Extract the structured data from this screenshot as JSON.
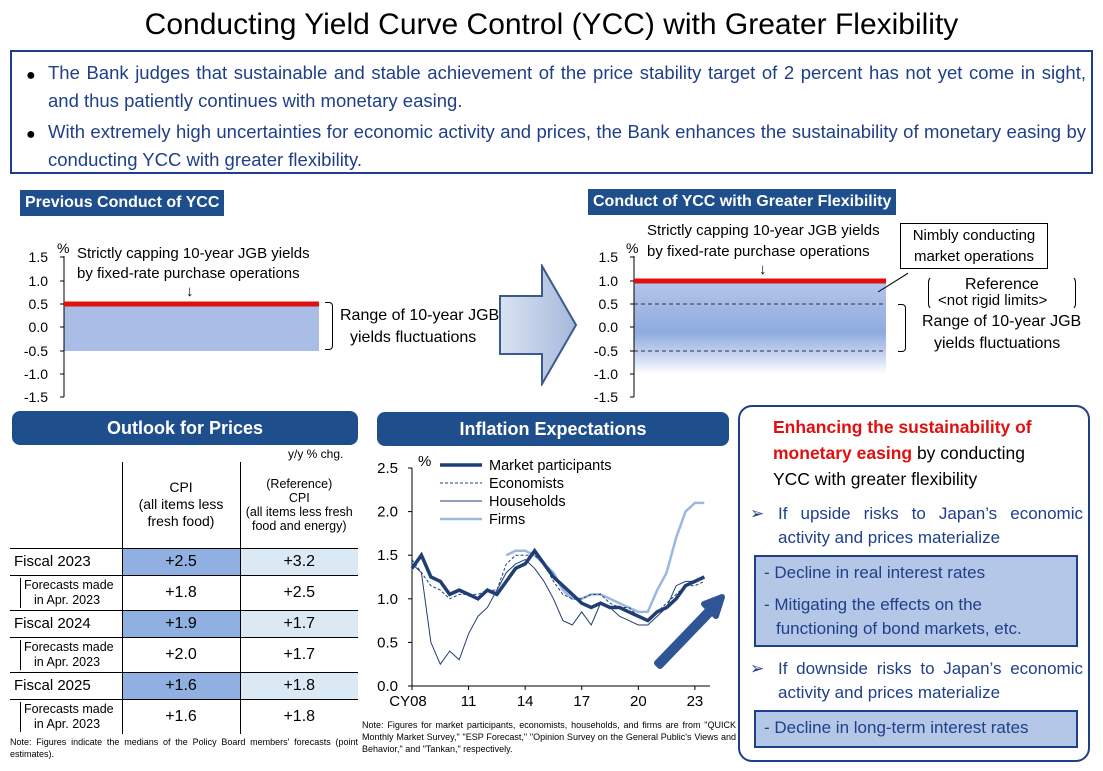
{
  "title": "Conducting Yield Curve Control (YCC) with Greater Flexibility",
  "summary": [
    "The Bank judges that sustainable and stable achievement of the price stability target of 2 percent has not yet come in sight, and thus patiently continues with monetary easing.",
    "With extremely high uncertainties for economic activity and prices, the Bank enhances the sustainability of monetary easing by conducting YCC with greater flexibility."
  ],
  "previous": {
    "header": "Previous Conduct of YCC",
    "unit": "%",
    "ticks": [
      "1.5",
      "1.0",
      "0.5",
      "0.0",
      "-0.5",
      "-1.0",
      "-1.5"
    ],
    "cap_label_1": "Strictly capping 10-year JGB yields",
    "cap_label_2": "by fixed-rate purchase operations",
    "arrow": "↓",
    "range_1": "Range of 10-year JGB",
    "range_2": "yields fluctuations",
    "cap_value": 0.5,
    "range": [
      -0.5,
      0.5
    ]
  },
  "flexible": {
    "header": "Conduct of YCC with Greater Flexibility",
    "unit": "%",
    "ticks": [
      "1.5",
      "1.0",
      "0.5",
      "0.0",
      "-0.5",
      "-1.0",
      "-1.5"
    ],
    "cap_label_1": "Strictly capping 10-year JGB yields",
    "cap_label_2": "by fixed-rate purchase operations",
    "arrow": "↓",
    "nimbly_1": "Nimbly conducting",
    "nimbly_2": "market operations",
    "ref_1": "Reference",
    "ref_2": "<not rigid limits>",
    "range_1": "Range of 10-year JGB",
    "range_2": "yields fluctuations",
    "cap_value": 1.0,
    "reference": [
      -0.5,
      0.5
    ]
  },
  "prices": {
    "header": "Outlook for Prices",
    "unit_note": "y/y % chg.",
    "col1": [
      "CPI",
      "(all items less",
      "fresh food)"
    ],
    "col2": [
      "(Reference)",
      "CPI",
      "(all items less fresh",
      "food and energy)"
    ],
    "rows": [
      {
        "label": "Fiscal 2023",
        "cpi": "+2.5",
        "core": "+3.2"
      },
      {
        "label": "Forecasts made in Apr. 2023",
        "l1": "Forecasts made",
        "l2": "in Apr. 2023",
        "cpi": "+1.8",
        "core": "+2.5"
      },
      {
        "label": "Fiscal 2024",
        "cpi": "+1.9",
        "core": "+1.7"
      },
      {
        "label": "Forecasts made in Apr. 2023",
        "l1": "Forecasts made",
        "l2": "in Apr. 2023",
        "cpi": "+2.0",
        "core": "+1.7"
      },
      {
        "label": "Fiscal 2025",
        "cpi": "+1.6",
        "core": "+1.8"
      },
      {
        "label": "Forecasts made in Apr. 2023",
        "l1": "Forecasts made",
        "l2": "in Apr. 2023",
        "cpi": "+1.6",
        "core": "+1.8"
      }
    ],
    "note": "Note: Figures indicate the medians of the Policy Board members' forecasts (point estimates)."
  },
  "inflation": {
    "header": "Inflation Expectations",
    "note": "Note: Figures for market participants, economists, households, and firms are from \"QUICK Monthly Market Survey,\" \"ESP Forecast,\" \"Opinion Survey on the General Public's Views and Behavior,\" and \"Tankan,\" respectively."
  },
  "chart_data": {
    "type": "line",
    "ylabel": "%",
    "ylim": [
      0.0,
      2.5
    ],
    "yticks": [
      "0.0",
      "0.5",
      "1.0",
      "1.5",
      "2.0",
      "2.5"
    ],
    "xticks": [
      "CY08",
      "11",
      "14",
      "17",
      "20",
      "23"
    ],
    "x": [
      2008.0,
      2008.5,
      2009.0,
      2009.5,
      2010.0,
      2010.5,
      2011.0,
      2011.5,
      2012.0,
      2012.5,
      2013.0,
      2013.5,
      2014.0,
      2014.5,
      2015.0,
      2015.5,
      2016.0,
      2016.5,
      2017.0,
      2017.5,
      2018.0,
      2018.5,
      2019.0,
      2019.5,
      2020.0,
      2020.5,
      2021.0,
      2021.5,
      2022.0,
      2022.5,
      2023.0,
      2023.5
    ],
    "series": [
      {
        "name": "Market participants",
        "values": [
          1.35,
          1.5,
          1.25,
          1.2,
          1.05,
          1.1,
          1.05,
          1.0,
          1.1,
          1.05,
          1.2,
          1.35,
          1.4,
          1.55,
          1.4,
          1.25,
          1.15,
          1.05,
          0.95,
          0.9,
          0.95,
          0.9,
          0.9,
          0.85,
          0.8,
          0.75,
          0.85,
          0.9,
          1.0,
          1.15,
          1.2,
          1.25
        ]
      },
      {
        "name": "Economists",
        "values": [
          1.45,
          1.3,
          1.15,
          1.1,
          1.0,
          1.05,
          1.05,
          1.05,
          1.1,
          1.1,
          1.4,
          1.5,
          1.5,
          1.5,
          1.4,
          1.2,
          1.05,
          1.0,
          1.0,
          1.05,
          1.05,
          0.95,
          0.9,
          0.9,
          0.8,
          0.75,
          0.85,
          0.95,
          1.05,
          1.15,
          1.15,
          1.2
        ]
      },
      {
        "name": "Households",
        "values": [
          1.4,
          1.3,
          0.5,
          0.25,
          0.4,
          0.3,
          0.6,
          0.8,
          0.9,
          1.1,
          1.3,
          1.4,
          1.45,
          1.35,
          1.2,
          1.0,
          0.75,
          0.7,
          0.85,
          0.7,
          0.95,
          0.9,
          0.8,
          0.75,
          0.7,
          0.7,
          0.8,
          0.9,
          1.15,
          1.2,
          1.2,
          1.25
        ]
      },
      {
        "name": "Firms",
        "values": [
          null,
          null,
          null,
          null,
          null,
          null,
          null,
          null,
          null,
          null,
          1.5,
          1.55,
          1.55,
          1.5,
          1.4,
          1.3,
          1.1,
          1.0,
          1.0,
          1.05,
          1.05,
          1.0,
          0.95,
          0.9,
          0.85,
          0.85,
          1.1,
          1.3,
          1.7,
          2.0,
          2.1,
          2.1
        ]
      }
    ],
    "grid": false,
    "legend": "top"
  },
  "right": {
    "head_red_1": "Enhancing the sustainability of",
    "head_red_2": "monetary easing",
    "head_black_2": " by conducting",
    "head_black_3": "YCC with greater flexibility",
    "arrow_glyph": "➢",
    "up_1": "If upside risks to Japan’s economic",
    "up_2": "activity and prices materialize",
    "up_box_1": "- Decline in real interest rates",
    "up_box_2": "- Mitigating the effects on the",
    "up_box_3": "functioning of bond markets, etc.",
    "down_1": "If downside risks to Japan’s economic",
    "down_2": "activity and prices materialize",
    "down_box": "- Decline in long-term interest rates"
  },
  "colors": {
    "navy": "#1f3f88",
    "header_blue": "#1f4e8c",
    "cap_red": "#e01010",
    "band_blue": "#a9bde6",
    "highlight_blue": "#8fb0e0",
    "light_cell": "#dbe9f5",
    "emphasis_red": "#e01010"
  }
}
